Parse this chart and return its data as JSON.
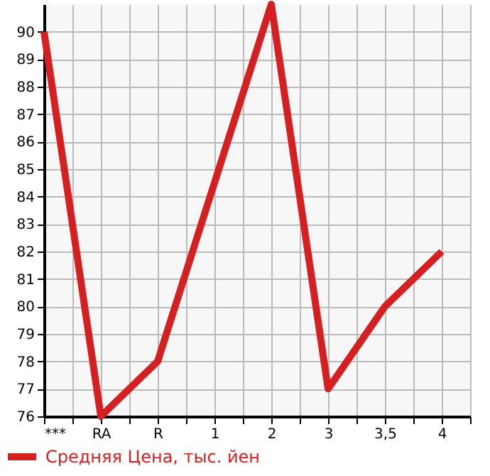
{
  "chart_data": {
    "type": "line",
    "categories": [
      "***",
      "RA",
      "R",
      "1",
      "2",
      "3",
      "3,5",
      "4"
    ],
    "series": [
      {
        "name": "Средняя Цена, тыс. йен",
        "color": "#d42020",
        "values": [
          90,
          76,
          78,
          84.5,
          91,
          77,
          80,
          82
        ]
      }
    ],
    "ylim": [
      76,
      91
    ],
    "yticks": [
      76,
      77,
      78,
      79,
      80,
      81,
      82,
      83,
      84,
      85,
      86,
      87,
      88,
      89,
      90
    ],
    "grid": true,
    "legend": "bottom left",
    "marker": "none",
    "line_style": "solid"
  }
}
